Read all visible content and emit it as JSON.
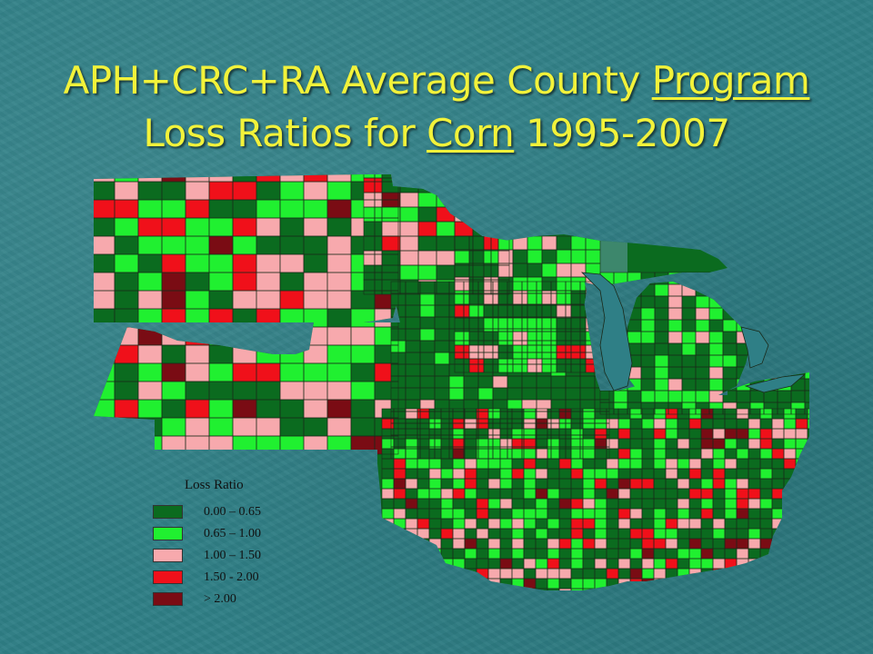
{
  "slide": {
    "title_line1_pre": "APH+CRC+RA Average County ",
    "title_line1_u": "Program",
    "title_line2_pre": "Loss Ratios for ",
    "title_line2_u": "Corn",
    "title_line2_post": " 1995-2007"
  },
  "colors": {
    "background": "#2f7f86",
    "title": "#f2f23a",
    "no_data": "#5f9aa0"
  },
  "legend": {
    "title": "Loss Ratio",
    "items": [
      {
        "label": "0.00 – 0.65",
        "color": "#0b6b1f"
      },
      {
        "label": "0.65 – 1.00",
        "color": "#20f030"
      },
      {
        "label": "1.00 – 1.50",
        "color": "#f7a9ad"
      },
      {
        "label": "1.50 - 2.00",
        "color": "#f0101a"
      },
      {
        "label": "> 2.00",
        "color": "#7a0c14"
      }
    ]
  }
}
